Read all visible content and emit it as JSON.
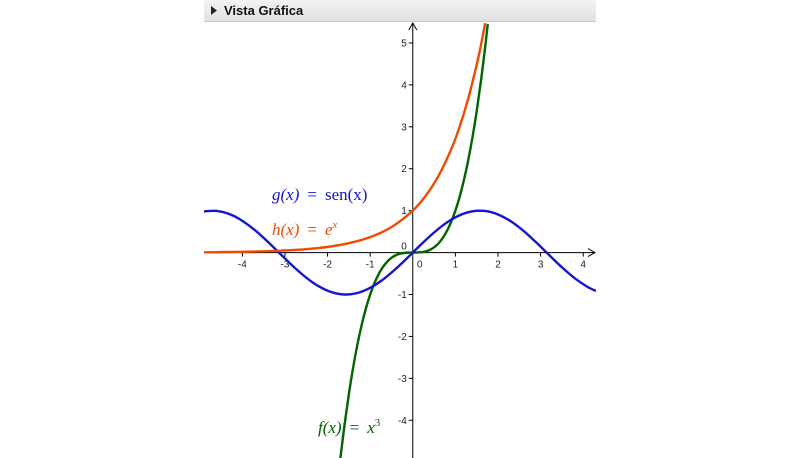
{
  "view": {
    "title": "Vista Gráfica",
    "toggle_icon": "triangle-right-icon"
  },
  "chart_data": {
    "type": "line",
    "xlim": [
      -4.9,
      4.3
    ],
    "ylim": [
      -4.9,
      5.5
    ],
    "x_ticks": [
      -4,
      -3,
      -2,
      -1,
      0,
      1,
      2,
      3,
      4
    ],
    "y_ticks": [
      -4,
      -3,
      -2,
      -1,
      1,
      2,
      3,
      4,
      5
    ],
    "origin_label": "0",
    "grid": false,
    "series": [
      {
        "label": "f(x) = x³",
        "label_parts": {
          "name": "f(x)",
          "eq": "=",
          "rhs": "x",
          "sup": "3"
        },
        "expr": "x^3",
        "color": "#006400",
        "x": [
          -1.7,
          -1.6,
          -1.5,
          -1.4,
          -1.3,
          -1.2,
          -1.1,
          -1.0,
          -0.9,
          -0.8,
          -0.7,
          -0.6,
          -0.5,
          -0.4,
          -0.3,
          -0.2,
          -0.1,
          0.0,
          0.1,
          0.2,
          0.3,
          0.4,
          0.5,
          0.6,
          0.7,
          0.8,
          0.9,
          1.0,
          1.1,
          1.2,
          1.3,
          1.4,
          1.5,
          1.6,
          1.7,
          1.76
        ],
        "y": [
          -4.913,
          -4.096,
          -3.375,
          -2.744,
          -2.197,
          -1.728,
          -1.331,
          -1.0,
          -0.729,
          -0.512,
          -0.343,
          -0.216,
          -0.125,
          -0.064,
          -0.027,
          -0.008,
          -0.001,
          0.0,
          0.001,
          0.008,
          0.027,
          0.064,
          0.125,
          0.216,
          0.343,
          0.512,
          0.729,
          1.0,
          1.331,
          1.728,
          2.197,
          2.744,
          3.375,
          4.096,
          4.913,
          5.45
        ]
      },
      {
        "label": "g(x) = sen(x)",
        "label_parts": {
          "name": "g(x)",
          "eq": "=",
          "rhs": "sen(x)",
          "sup": ""
        },
        "expr": "sin(x)",
        "color": "#1414d2",
        "x": [
          -4.9,
          -4.6,
          -4.3,
          -4.0,
          -3.7,
          -3.4,
          -3.1,
          -2.8,
          -2.5,
          -2.2,
          -1.9,
          -1.6,
          -1.3,
          -1.0,
          -0.7,
          -0.4,
          -0.1,
          0.2,
          0.5,
          0.8,
          1.1,
          1.4,
          1.7,
          2.0,
          2.3,
          2.6,
          2.9,
          3.2,
          3.5,
          3.8,
          4.1,
          4.3
        ],
        "y": [
          0.982,
          0.994,
          0.916,
          0.757,
          0.53,
          0.256,
          -0.042,
          -0.335,
          -0.598,
          -0.808,
          -0.946,
          -1.0,
          -0.964,
          -0.841,
          -0.644,
          -0.389,
          -0.1,
          0.199,
          0.479,
          0.717,
          0.891,
          0.985,
          0.992,
          0.909,
          0.746,
          0.516,
          0.239,
          -0.058,
          -0.351,
          -0.612,
          -0.818,
          -0.916
        ]
      },
      {
        "label": "h(x) = eˣ",
        "label_parts": {
          "name": "h(x)",
          "eq": "=",
          "rhs": "e",
          "sup": "x"
        },
        "expr": "e^x",
        "color": "#f04a00",
        "x": [
          -4.9,
          -4.5,
          -4.0,
          -3.5,
          -3.0,
          -2.5,
          -2.0,
          -1.5,
          -1.0,
          -0.5,
          0.0,
          0.3,
          0.6,
          0.9,
          1.1,
          1.3,
          1.5,
          1.6,
          1.7
        ],
        "y": [
          0.007,
          0.011,
          0.018,
          0.03,
          0.05,
          0.082,
          0.135,
          0.223,
          0.368,
          0.607,
          1.0,
          1.35,
          1.822,
          2.46,
          3.004,
          3.669,
          4.482,
          4.953,
          5.474
        ]
      }
    ]
  }
}
